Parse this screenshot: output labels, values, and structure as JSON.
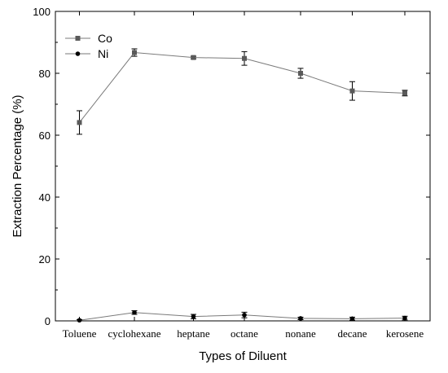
{
  "chart_data": {
    "type": "line",
    "title": "",
    "xlabel": "Types of Diluent",
    "ylabel": "Extraction Percentage (%)",
    "ylim": [
      0,
      100
    ],
    "yticks": [
      0,
      20,
      40,
      60,
      80,
      100
    ],
    "grid": false,
    "legend_position": "top-left",
    "categories": [
      "Toluene",
      "cyclohexane",
      "heptane",
      "octane",
      "nonane",
      "decane",
      "kerosene"
    ],
    "series": [
      {
        "name": "Co",
        "marker": "square",
        "color": "#5a5a5a",
        "values": [
          64.1,
          86.7,
          85.1,
          84.8,
          80.0,
          74.3,
          73.6
        ],
        "errors": [
          3.8,
          1.2,
          0.4,
          2.2,
          1.6,
          3.0,
          0.9
        ]
      },
      {
        "name": "Ni",
        "marker": "circle",
        "color": "#000000",
        "values": [
          0.2,
          2.7,
          1.4,
          1.9,
          0.8,
          0.7,
          0.9
        ],
        "errors": [
          0.2,
          0.6,
          0.7,
          0.9,
          0.4,
          0.5,
          0.6
        ]
      }
    ]
  }
}
